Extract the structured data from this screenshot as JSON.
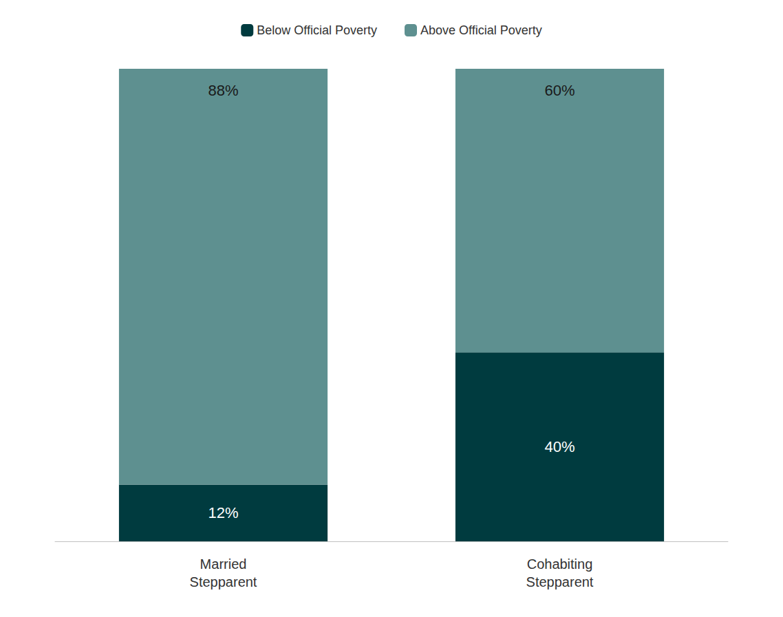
{
  "chart_data": {
    "type": "bar",
    "stacked": true,
    "categories": [
      "Married\nStepparent",
      "Cohabiting\nStepparent"
    ],
    "series": [
      {
        "name": "Below Official Poverty",
        "color": "#003B3F",
        "values": [
          12,
          40
        ],
        "value_labels": [
          "12%",
          "40%"
        ]
      },
      {
        "name": "Above Official Poverty",
        "color": "#5E9090",
        "values": [
          88,
          60
        ],
        "value_labels": [
          "88%",
          "60%"
        ]
      }
    ],
    "ylim": [
      0,
      100
    ],
    "grid": false,
    "legend": "top",
    "data_labels": true,
    "tick_labels": "x"
  }
}
